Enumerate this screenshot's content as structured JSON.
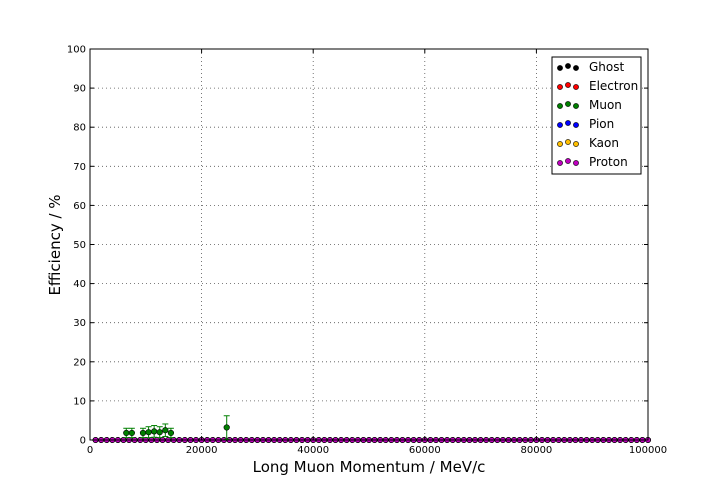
{
  "chart_data": {
    "type": "scatter",
    "title": "",
    "xlabel": "Long Muon Momentum / MeV/c",
    "ylabel": "Efficiency / %",
    "xlim": [
      0,
      100000
    ],
    "ylim": [
      0,
      100
    ],
    "xticks": [
      0,
      20000,
      40000,
      60000,
      80000,
      100000
    ],
    "yticks": [
      0,
      10,
      20,
      30,
      40,
      50,
      60,
      70,
      80,
      90,
      100
    ],
    "grid": true,
    "legend_position": "top-right",
    "zero_series_x": {
      "start": 1000,
      "step": 1000,
      "count": 100
    },
    "series": [
      {
        "name": "Ghost",
        "color": "#000000",
        "values": "all zero"
      },
      {
        "name": "Electron",
        "color": "#ff0000",
        "values": "all zero"
      },
      {
        "name": "Muon",
        "color": "#007f00",
        "points": [
          {
            "x": 6500,
            "y": 1.8,
            "err": 1.2
          },
          {
            "x": 7500,
            "y": 1.8,
            "err": 1.2
          },
          {
            "x": 9500,
            "y": 1.8,
            "err": 1.2
          },
          {
            "x": 10500,
            "y": 2.0,
            "err": 1.4
          },
          {
            "x": 11500,
            "y": 2.2,
            "err": 1.5
          },
          {
            "x": 12500,
            "y": 2.0,
            "err": 1.4
          },
          {
            "x": 13500,
            "y": 2.5,
            "err": 1.6
          },
          {
            "x": 14500,
            "y": 1.8,
            "err": 1.2
          },
          {
            "x": 24500,
            "y": 3.2,
            "err": 3.0
          }
        ]
      },
      {
        "name": "Pion",
        "color": "#0000ff",
        "values": "all zero"
      },
      {
        "name": "Kaon",
        "color": "#ffbf00",
        "values": "all zero"
      },
      {
        "name": "Proton",
        "color": "#bf00bf",
        "values": "all zero"
      }
    ]
  }
}
